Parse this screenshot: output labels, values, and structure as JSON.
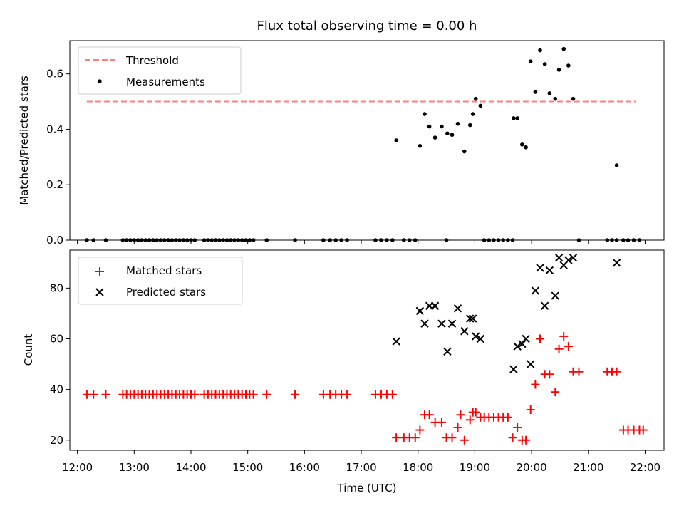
{
  "chart_data": [
    {
      "type": "scatter",
      "title": "Flux total observing time = 0.00 h",
      "ylabel": "Matched/Predicted stars",
      "xlabel": "",
      "xlim": [
        "11:52",
        "22:20"
      ],
      "ylim": [
        0,
        0.72
      ],
      "yticks": [
        0.0,
        0.2,
        0.4,
        0.6
      ],
      "ytick_labels": [
        "0.0",
        "0.2",
        "0.4",
        "0.6"
      ],
      "xticks": [
        "12:00",
        "13:00",
        "14:00",
        "15:00",
        "16:00",
        "17:00",
        "18:00",
        "19:00",
        "20:00",
        "21:00",
        "22:00"
      ],
      "grid": false,
      "legend_position": "top-left",
      "threshold": {
        "name": "Threshold",
        "y": 0.5,
        "x_start": "12:10",
        "x_end": "21:50",
        "color": "#ff7f7f",
        "style": "dashed"
      },
      "series": [
        {
          "name": "Measurements",
          "color": "#000000",
          "marker": "dot",
          "points": [
            [
              "12:10",
              0
            ],
            [
              "12:17",
              0
            ],
            [
              "12:30",
              0
            ],
            [
              "12:48",
              0
            ],
            [
              "12:52",
              0
            ],
            [
              "12:56",
              0
            ],
            [
              "13:00",
              0
            ],
            [
              "13:04",
              0
            ],
            [
              "13:08",
              0
            ],
            [
              "13:12",
              0
            ],
            [
              "13:16",
              0
            ],
            [
              "13:20",
              0
            ],
            [
              "13:24",
              0
            ],
            [
              "13:28",
              0
            ],
            [
              "13:32",
              0
            ],
            [
              "13:36",
              0
            ],
            [
              "13:40",
              0
            ],
            [
              "13:44",
              0
            ],
            [
              "13:48",
              0
            ],
            [
              "13:52",
              0
            ],
            [
              "13:56",
              0
            ],
            [
              "14:00",
              0
            ],
            [
              "14:04",
              0
            ],
            [
              "14:14",
              0
            ],
            [
              "14:18",
              0
            ],
            [
              "14:22",
              0
            ],
            [
              "14:26",
              0
            ],
            [
              "14:30",
              0
            ],
            [
              "14:34",
              0
            ],
            [
              "14:38",
              0
            ],
            [
              "14:42",
              0
            ],
            [
              "14:46",
              0
            ],
            [
              "14:50",
              0
            ],
            [
              "14:54",
              0
            ],
            [
              "14:58",
              0
            ],
            [
              "15:02",
              0
            ],
            [
              "15:06",
              0
            ],
            [
              "15:20",
              0
            ],
            [
              "15:50",
              0
            ],
            [
              "16:20",
              0
            ],
            [
              "16:27",
              0
            ],
            [
              "16:33",
              0
            ],
            [
              "16:39",
              0
            ],
            [
              "16:45",
              0
            ],
            [
              "17:15",
              0
            ],
            [
              "17:21",
              0
            ],
            [
              "17:27",
              0
            ],
            [
              "17:33",
              0
            ],
            [
              "17:45",
              0
            ],
            [
              "17:51",
              0
            ],
            [
              "17:57",
              0
            ],
            [
              "18:30",
              0
            ],
            [
              "19:10",
              0
            ],
            [
              "19:15",
              0
            ],
            [
              "19:20",
              0
            ],
            [
              "19:25",
              0
            ],
            [
              "19:30",
              0
            ],
            [
              "19:35",
              0
            ],
            [
              "19:40",
              0
            ],
            [
              "20:50",
              0
            ],
            [
              "21:20",
              0
            ],
            [
              "21:25",
              0
            ],
            [
              "21:30",
              0
            ],
            [
              "21:37",
              0
            ],
            [
              "21:42",
              0
            ],
            [
              "21:48",
              0
            ],
            [
              "21:54",
              0
            ],
            [
              "17:37",
              0.36
            ],
            [
              "18:02",
              0.34
            ],
            [
              "18:07",
              0.455
            ],
            [
              "18:12",
              0.41
            ],
            [
              "18:18",
              0.37
            ],
            [
              "18:25",
              0.41
            ],
            [
              "18:31",
              0.385
            ],
            [
              "18:36",
              0.38
            ],
            [
              "18:42",
              0.42
            ],
            [
              "18:49",
              0.32
            ],
            [
              "18:55",
              0.415
            ],
            [
              "18:58",
              0.455
            ],
            [
              "19:01",
              0.51
            ],
            [
              "19:06",
              0.485
            ],
            [
              "19:41",
              0.44
            ],
            [
              "19:45",
              0.44
            ],
            [
              "19:50",
              0.345
            ],
            [
              "19:54",
              0.335
            ],
            [
              "19:59",
              0.645
            ],
            [
              "20:04",
              0.535
            ],
            [
              "20:09",
              0.685
            ],
            [
              "20:14",
              0.635
            ],
            [
              "20:19",
              0.53
            ],
            [
              "20:25",
              0.51
            ],
            [
              "20:29",
              0.615
            ],
            [
              "20:34",
              0.69
            ],
            [
              "20:39",
              0.63
            ],
            [
              "20:44",
              0.51
            ],
            [
              "21:30",
              0.27
            ]
          ]
        }
      ]
    },
    {
      "type": "scatter",
      "title": "",
      "ylabel": "Count",
      "xlabel": "Time (UTC)",
      "xlim": [
        "11:52",
        "22:20"
      ],
      "ylim": [
        16,
        95
      ],
      "yticks": [
        20,
        40,
        60,
        80
      ],
      "ytick_labels": [
        "20",
        "40",
        "60",
        "80"
      ],
      "xticks": [
        "12:00",
        "13:00",
        "14:00",
        "15:00",
        "16:00",
        "17:00",
        "18:00",
        "19:00",
        "20:00",
        "21:00",
        "22:00"
      ],
      "grid": false,
      "legend_position": "top-left",
      "series": [
        {
          "name": "Matched stars",
          "color": "#ff0000",
          "marker": "plus",
          "points": [
            [
              "12:10",
              38
            ],
            [
              "12:17",
              38
            ],
            [
              "12:30",
              38
            ],
            [
              "12:48",
              38
            ],
            [
              "12:52",
              38
            ],
            [
              "12:56",
              38
            ],
            [
              "13:00",
              38
            ],
            [
              "13:04",
              38
            ],
            [
              "13:08",
              38
            ],
            [
              "13:12",
              38
            ],
            [
              "13:16",
              38
            ],
            [
              "13:20",
              38
            ],
            [
              "13:24",
              38
            ],
            [
              "13:28",
              38
            ],
            [
              "13:32",
              38
            ],
            [
              "13:36",
              38
            ],
            [
              "13:40",
              38
            ],
            [
              "13:44",
              38
            ],
            [
              "13:48",
              38
            ],
            [
              "13:52",
              38
            ],
            [
              "13:56",
              38
            ],
            [
              "14:00",
              38
            ],
            [
              "14:04",
              38
            ],
            [
              "14:14",
              38
            ],
            [
              "14:18",
              38
            ],
            [
              "14:22",
              38
            ],
            [
              "14:26",
              38
            ],
            [
              "14:30",
              38
            ],
            [
              "14:34",
              38
            ],
            [
              "14:38",
              38
            ],
            [
              "14:42",
              38
            ],
            [
              "14:46",
              38
            ],
            [
              "14:50",
              38
            ],
            [
              "14:54",
              38
            ],
            [
              "14:58",
              38
            ],
            [
              "15:02",
              38
            ],
            [
              "15:06",
              38
            ],
            [
              "15:20",
              38
            ],
            [
              "15:50",
              38
            ],
            [
              "16:20",
              38
            ],
            [
              "16:27",
              38
            ],
            [
              "16:33",
              38
            ],
            [
              "16:39",
              38
            ],
            [
              "16:45",
              38
            ],
            [
              "17:15",
              38
            ],
            [
              "17:21",
              38
            ],
            [
              "17:27",
              38
            ],
            [
              "17:33",
              38
            ],
            [
              "17:37",
              21
            ],
            [
              "17:45",
              21
            ],
            [
              "17:51",
              21
            ],
            [
              "17:57",
              21
            ],
            [
              "18:02",
              24
            ],
            [
              "18:07",
              30
            ],
            [
              "18:12",
              30
            ],
            [
              "18:18",
              27
            ],
            [
              "18:25",
              27
            ],
            [
              "18:30",
              21
            ],
            [
              "18:36",
              21
            ],
            [
              "18:42",
              25
            ],
            [
              "18:45",
              30
            ],
            [
              "18:49",
              20
            ],
            [
              "18:55",
              28
            ],
            [
              "18:58",
              31
            ],
            [
              "19:01",
              31
            ],
            [
              "19:06",
              29
            ],
            [
              "19:10",
              29
            ],
            [
              "19:15",
              29
            ],
            [
              "19:20",
              29
            ],
            [
              "19:25",
              29
            ],
            [
              "19:30",
              29
            ],
            [
              "19:35",
              29
            ],
            [
              "19:40",
              21
            ],
            [
              "19:45",
              25
            ],
            [
              "19:50",
              20
            ],
            [
              "19:54",
              20
            ],
            [
              "19:59",
              32
            ],
            [
              "20:04",
              42
            ],
            [
              "20:09",
              60
            ],
            [
              "20:14",
              46
            ],
            [
              "20:19",
              46
            ],
            [
              "20:25",
              39
            ],
            [
              "20:29",
              56
            ],
            [
              "20:34",
              61
            ],
            [
              "20:39",
              57
            ],
            [
              "20:44",
              47
            ],
            [
              "20:50",
              47
            ],
            [
              "21:20",
              47
            ],
            [
              "21:25",
              47
            ],
            [
              "21:30",
              47
            ],
            [
              "21:37",
              24
            ],
            [
              "21:42",
              24
            ],
            [
              "21:48",
              24
            ],
            [
              "21:54",
              24
            ],
            [
              "21:58",
              24
            ]
          ]
        },
        {
          "name": "Predicted stars",
          "color": "#000000",
          "marker": "x",
          "points": [
            [
              "17:37",
              59
            ],
            [
              "18:02",
              71
            ],
            [
              "18:07",
              66
            ],
            [
              "18:12",
              73
            ],
            [
              "18:18",
              73
            ],
            [
              "18:25",
              66
            ],
            [
              "18:31",
              55
            ],
            [
              "18:36",
              66
            ],
            [
              "18:42",
              72
            ],
            [
              "18:49",
              63
            ],
            [
              "18:55",
              68
            ],
            [
              "18:58",
              68
            ],
            [
              "19:01",
              61
            ],
            [
              "19:06",
              60
            ],
            [
              "19:41",
              48
            ],
            [
              "19:45",
              57
            ],
            [
              "19:50",
              58
            ],
            [
              "19:54",
              60
            ],
            [
              "19:59",
              50
            ],
            [
              "20:04",
              79
            ],
            [
              "20:09",
              88
            ],
            [
              "20:14",
              73
            ],
            [
              "20:19",
              87
            ],
            [
              "20:25",
              77
            ],
            [
              "20:29",
              92
            ],
            [
              "20:34",
              89
            ],
            [
              "20:39",
              91
            ],
            [
              "20:44",
              92
            ],
            [
              "21:30",
              90
            ]
          ]
        }
      ]
    }
  ]
}
